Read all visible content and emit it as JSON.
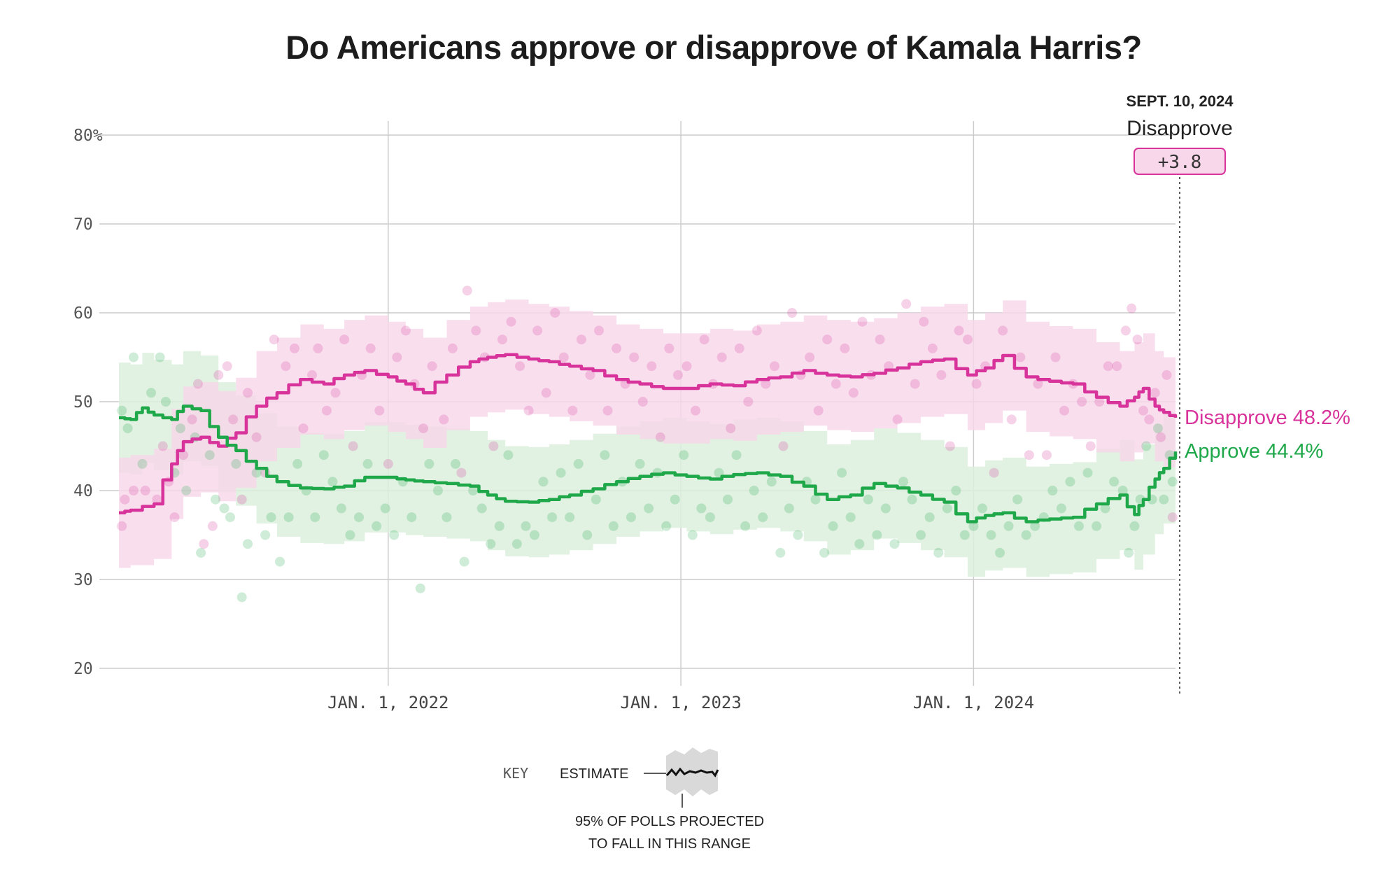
{
  "title": "Do Americans approve or disapprove of Kamala Harris?",
  "colors": {
    "approve": "#1ea84a",
    "disapprove": "#d8339b",
    "approve_band": "#dcefdd",
    "disapprove_band": "#f8d7ea",
    "grid": "#cccccc"
  },
  "chart_data": {
    "type": "line",
    "title": "Do Americans approve or disapprove of Kamala Harris?",
    "ylim": [
      20,
      80
    ],
    "yticks": [
      20,
      30,
      40,
      50,
      60,
      70,
      80
    ],
    "ytick_labels": [
      "20",
      "30",
      "40",
      "50",
      "60",
      "70",
      "80%"
    ],
    "xlim": [
      2021.08,
      2024.69
    ],
    "xticks": [
      2022,
      2023,
      2024
    ],
    "xtick_labels": [
      "JAN. 1, 2022",
      "JAN. 1, 2023",
      "JAN. 1, 2024"
    ],
    "series": [
      {
        "name": "Disapprove",
        "x": [
          2021.08,
          2021.12,
          2021.2,
          2021.26,
          2021.3,
          2021.36,
          2021.42,
          2021.48,
          2021.55,
          2021.62,
          2021.7,
          2021.78,
          2021.85,
          2021.92,
          2022.0,
          2022.06,
          2022.12,
          2022.2,
          2022.28,
          2022.34,
          2022.4,
          2022.48,
          2022.55,
          2022.62,
          2022.7,
          2022.78,
          2022.86,
          2022.94,
          2023.02,
          2023.1,
          2023.18,
          2023.26,
          2023.34,
          2023.42,
          2023.5,
          2023.58,
          2023.66,
          2023.74,
          2023.82,
          2023.9,
          2023.98,
          2024.04,
          2024.1,
          2024.18,
          2024.26,
          2024.34,
          2024.42,
          2024.5,
          2024.55,
          2024.58,
          2024.62,
          2024.65,
          2024.69
        ],
        "values": [
          37.5,
          37.8,
          38.5,
          43,
          45.5,
          46,
          45,
          46.5,
          49.5,
          51,
          52.5,
          52,
          53,
          53.5,
          52.8,
          52,
          51,
          53,
          54.5,
          55,
          55.3,
          54.8,
          54.5,
          54,
          53.5,
          52.5,
          52,
          51.5,
          51.5,
          52,
          51.8,
          52.5,
          52.8,
          53.5,
          53,
          52.8,
          53.2,
          53.8,
          54.5,
          54.8,
          53,
          53.8,
          55.2,
          52.8,
          52.3,
          52,
          50.5,
          49.5,
          50.5,
          51.5,
          49.5,
          48.8,
          48.2
        ],
        "final_value": 48.2,
        "label": "Disapprove 48.2%"
      },
      {
        "name": "Approve",
        "x": [
          2021.08,
          2021.12,
          2021.16,
          2021.2,
          2021.26,
          2021.3,
          2021.36,
          2021.42,
          2021.48,
          2021.55,
          2021.62,
          2021.7,
          2021.78,
          2021.85,
          2021.92,
          2022.0,
          2022.06,
          2022.12,
          2022.2,
          2022.28,
          2022.34,
          2022.4,
          2022.48,
          2022.55,
          2022.62,
          2022.7,
          2022.78,
          2022.86,
          2022.94,
          2023.02,
          2023.1,
          2023.18,
          2023.26,
          2023.34,
          2023.42,
          2023.5,
          2023.58,
          2023.66,
          2023.74,
          2023.82,
          2023.9,
          2023.98,
          2024.04,
          2024.1,
          2024.18,
          2024.26,
          2024.34,
          2024.42,
          2024.5,
          2024.55,
          2024.58,
          2024.62,
          2024.65,
          2024.69
        ],
        "values": [
          48.2,
          48,
          49.3,
          48.5,
          48,
          49.5,
          49,
          46,
          44.5,
          42.5,
          41,
          40.3,
          40.2,
          40.5,
          41.5,
          41.5,
          41.2,
          41,
          40.8,
          40.5,
          39.5,
          38.8,
          38.7,
          39,
          39.5,
          40.2,
          41,
          41.6,
          42,
          41.6,
          41.3,
          41.8,
          42,
          41.6,
          40.5,
          39,
          39.5,
          40.8,
          40.3,
          39.5,
          38.7,
          36.5,
          37.2,
          37.5,
          36.5,
          36.8,
          37,
          38.5,
          39.5,
          37.3,
          39,
          41.3,
          42.5,
          44.4
        ],
        "final_value": 44.4,
        "label": "Approve 44.4%"
      }
    ],
    "poll_points_disapprove": [
      [
        2021.09,
        36
      ],
      [
        2021.1,
        39
      ],
      [
        2021.13,
        40
      ],
      [
        2021.17,
        40
      ],
      [
        2021.21,
        39
      ],
      [
        2021.23,
        45
      ],
      [
        2021.25,
        41
      ],
      [
        2021.27,
        37
      ],
      [
        2021.3,
        44
      ],
      [
        2021.33,
        48
      ],
      [
        2021.35,
        52
      ],
      [
        2021.37,
        34
      ],
      [
        2021.4,
        36
      ],
      [
        2021.42,
        53
      ],
      [
        2021.45,
        54
      ],
      [
        2021.47,
        48
      ],
      [
        2021.5,
        39
      ],
      [
        2021.52,
        51
      ],
      [
        2021.55,
        46
      ],
      [
        2021.58,
        42
      ],
      [
        2021.61,
        57
      ],
      [
        2021.65,
        54
      ],
      [
        2021.68,
        56
      ],
      [
        2021.71,
        47
      ],
      [
        2021.74,
        53
      ],
      [
        2021.76,
        56
      ],
      [
        2021.79,
        49
      ],
      [
        2021.82,
        51
      ],
      [
        2021.85,
        57
      ],
      [
        2021.88,
        45
      ],
      [
        2021.91,
        53
      ],
      [
        2021.94,
        56
      ],
      [
        2021.97,
        49
      ],
      [
        2022.0,
        43
      ],
      [
        2022.03,
        55
      ],
      [
        2022.06,
        58
      ],
      [
        2022.09,
        52
      ],
      [
        2022.12,
        47
      ],
      [
        2022.15,
        54
      ],
      [
        2022.19,
        48
      ],
      [
        2022.22,
        56
      ],
      [
        2022.25,
        42
      ],
      [
        2022.27,
        62.5
      ],
      [
        2022.3,
        58
      ],
      [
        2022.33,
        55
      ],
      [
        2022.36,
        45
      ],
      [
        2022.39,
        57
      ],
      [
        2022.42,
        59
      ],
      [
        2022.45,
        54
      ],
      [
        2022.48,
        49
      ],
      [
        2022.51,
        58
      ],
      [
        2022.54,
        51
      ],
      [
        2022.57,
        60
      ],
      [
        2022.6,
        55
      ],
      [
        2022.63,
        49
      ],
      [
        2022.66,
        57
      ],
      [
        2022.69,
        53
      ],
      [
        2022.72,
        58
      ],
      [
        2022.75,
        49
      ],
      [
        2022.78,
        56
      ],
      [
        2022.81,
        52
      ],
      [
        2022.84,
        55
      ],
      [
        2022.87,
        50
      ],
      [
        2022.9,
        54
      ],
      [
        2022.93,
        46
      ],
      [
        2022.96,
        56
      ],
      [
        2022.99,
        53
      ],
      [
        2023.02,
        54
      ],
      [
        2023.05,
        49
      ],
      [
        2023.08,
        57
      ],
      [
        2023.11,
        52
      ],
      [
        2023.14,
        55
      ],
      [
        2023.17,
        47
      ],
      [
        2023.2,
        56
      ],
      [
        2023.23,
        50
      ],
      [
        2023.26,
        58
      ],
      [
        2023.29,
        52
      ],
      [
        2023.32,
        54
      ],
      [
        2023.35,
        45
      ],
      [
        2023.38,
        60
      ],
      [
        2023.41,
        53
      ],
      [
        2023.44,
        55
      ],
      [
        2023.47,
        49
      ],
      [
        2023.5,
        57
      ],
      [
        2023.53,
        52
      ],
      [
        2023.56,
        56
      ],
      [
        2023.59,
        51
      ],
      [
        2023.62,
        59
      ],
      [
        2023.65,
        53
      ],
      [
        2023.68,
        57
      ],
      [
        2023.71,
        54
      ],
      [
        2023.74,
        48
      ],
      [
        2023.77,
        61
      ],
      [
        2023.8,
        52
      ],
      [
        2023.83,
        59
      ],
      [
        2023.86,
        56
      ],
      [
        2023.89,
        53
      ],
      [
        2023.92,
        45
      ],
      [
        2023.95,
        58
      ],
      [
        2023.98,
        57
      ],
      [
        2024.01,
        52
      ],
      [
        2024.04,
        54
      ],
      [
        2024.07,
        42
      ],
      [
        2024.1,
        58
      ],
      [
        2024.13,
        48
      ],
      [
        2024.16,
        55
      ],
      [
        2024.19,
        44
      ],
      [
        2024.22,
        52
      ],
      [
        2024.25,
        44
      ],
      [
        2024.28,
        55
      ],
      [
        2024.31,
        49
      ],
      [
        2024.34,
        52
      ],
      [
        2024.37,
        50
      ],
      [
        2024.4,
        45
      ],
      [
        2024.43,
        50
      ],
      [
        2024.46,
        54
      ],
      [
        2024.49,
        54
      ],
      [
        2024.52,
        58
      ],
      [
        2024.54,
        60.5
      ],
      [
        2024.56,
        57
      ],
      [
        2024.58,
        49
      ],
      [
        2024.6,
        48
      ],
      [
        2024.62,
        51
      ],
      [
        2024.64,
        46
      ],
      [
        2024.66,
        53
      ],
      [
        2024.68,
        37
      ]
    ],
    "poll_points_approve": [
      [
        2021.09,
        49
      ],
      [
        2021.11,
        47
      ],
      [
        2021.13,
        55
      ],
      [
        2021.16,
        43
      ],
      [
        2021.19,
        51
      ],
      [
        2021.22,
        55
      ],
      [
        2021.24,
        50
      ],
      [
        2021.27,
        42
      ],
      [
        2021.29,
        47
      ],
      [
        2021.31,
        40
      ],
      [
        2021.34,
        46
      ],
      [
        2021.36,
        33
      ],
      [
        2021.39,
        44
      ],
      [
        2021.41,
        39
      ],
      [
        2021.44,
        38
      ],
      [
        2021.46,
        37
      ],
      [
        2021.48,
        43
      ],
      [
        2021.5,
        28
      ],
      [
        2021.52,
        34
      ],
      [
        2021.55,
        42
      ],
      [
        2021.58,
        35
      ],
      [
        2021.6,
        37
      ],
      [
        2021.63,
        32
      ],
      [
        2021.66,
        37
      ],
      [
        2021.69,
        43
      ],
      [
        2021.72,
        40
      ],
      [
        2021.75,
        37
      ],
      [
        2021.78,
        44
      ],
      [
        2021.81,
        41
      ],
      [
        2021.84,
        38
      ],
      [
        2021.87,
        35
      ],
      [
        2021.9,
        37
      ],
      [
        2021.93,
        43
      ],
      [
        2021.96,
        36
      ],
      [
        2021.99,
        38
      ],
      [
        2022.02,
        35
      ],
      [
        2022.05,
        41
      ],
      [
        2022.08,
        37
      ],
      [
        2022.11,
        29
      ],
      [
        2022.14,
        43
      ],
      [
        2022.17,
        40
      ],
      [
        2022.2,
        37
      ],
      [
        2022.23,
        43
      ],
      [
        2022.26,
        32
      ],
      [
        2022.29,
        40
      ],
      [
        2022.32,
        38
      ],
      [
        2022.35,
        34
      ],
      [
        2022.38,
        36
      ],
      [
        2022.41,
        44
      ],
      [
        2022.44,
        34
      ],
      [
        2022.47,
        36
      ],
      [
        2022.5,
        35
      ],
      [
        2022.53,
        41
      ],
      [
        2022.56,
        37
      ],
      [
        2022.59,
        42
      ],
      [
        2022.62,
        37
      ],
      [
        2022.65,
        43
      ],
      [
        2022.68,
        35
      ],
      [
        2022.71,
        39
      ],
      [
        2022.74,
        44
      ],
      [
        2022.77,
        36
      ],
      [
        2022.8,
        41
      ],
      [
        2022.83,
        37
      ],
      [
        2022.86,
        43
      ],
      [
        2022.89,
        38
      ],
      [
        2022.92,
        42
      ],
      [
        2022.95,
        36
      ],
      [
        2022.98,
        39
      ],
      [
        2023.01,
        44
      ],
      [
        2023.04,
        35
      ],
      [
        2023.07,
        38
      ],
      [
        2023.1,
        37
      ],
      [
        2023.13,
        42
      ],
      [
        2023.16,
        39
      ],
      [
        2023.19,
        44
      ],
      [
        2023.22,
        36
      ],
      [
        2023.25,
        40
      ],
      [
        2023.28,
        37
      ],
      [
        2023.31,
        41
      ],
      [
        2023.34,
        33
      ],
      [
        2023.37,
        38
      ],
      [
        2023.4,
        35
      ],
      [
        2023.43,
        41
      ],
      [
        2023.46,
        39
      ],
      [
        2023.49,
        33
      ],
      [
        2023.52,
        36
      ],
      [
        2023.55,
        42
      ],
      [
        2023.58,
        37
      ],
      [
        2023.61,
        34
      ],
      [
        2023.64,
        39
      ],
      [
        2023.67,
        35
      ],
      [
        2023.7,
        38
      ],
      [
        2023.73,
        34
      ],
      [
        2023.76,
        41
      ],
      [
        2023.79,
        39
      ],
      [
        2023.82,
        35
      ],
      [
        2023.85,
        37
      ],
      [
        2023.88,
        33
      ],
      [
        2023.91,
        38
      ],
      [
        2023.94,
        40
      ],
      [
        2023.97,
        35
      ],
      [
        2024.0,
        36
      ],
      [
        2024.03,
        38
      ],
      [
        2024.06,
        35
      ],
      [
        2024.09,
        33
      ],
      [
        2024.12,
        36
      ],
      [
        2024.15,
        39
      ],
      [
        2024.18,
        35
      ],
      [
        2024.21,
        36
      ],
      [
        2024.24,
        37
      ],
      [
        2024.27,
        40
      ],
      [
        2024.3,
        38
      ],
      [
        2024.33,
        41
      ],
      [
        2024.36,
        36
      ],
      [
        2024.39,
        42
      ],
      [
        2024.42,
        36
      ],
      [
        2024.45,
        38
      ],
      [
        2024.48,
        41
      ],
      [
        2024.51,
        40
      ],
      [
        2024.53,
        33
      ],
      [
        2024.55,
        36
      ],
      [
        2024.57,
        39
      ],
      [
        2024.59,
        45
      ],
      [
        2024.61,
        39
      ],
      [
        2024.63,
        47
      ],
      [
        2024.65,
        39
      ],
      [
        2024.67,
        44
      ],
      [
        2024.68,
        41
      ]
    ],
    "latest": {
      "date": "SEPT. 10, 2024",
      "leader": "Disapprove",
      "margin": "+3.8"
    }
  },
  "key": {
    "title": "KEY",
    "estimate": "ESTIMATE",
    "range_line1": "95% OF POLLS PROJECTED",
    "range_line2": "TO FALL IN THIS RANGE"
  }
}
